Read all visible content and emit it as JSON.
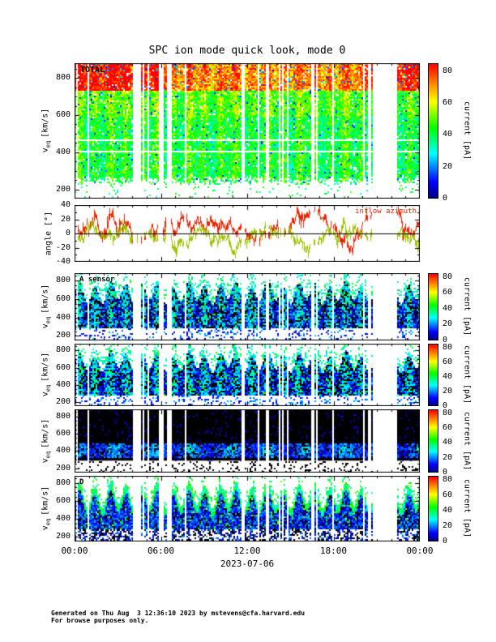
{
  "title": "SPC ion mode quick look, mode 0",
  "xaxis": {
    "ticks": [
      "00:00",
      "06:00",
      "12:00",
      "18:00",
      "00:00"
    ],
    "date_label": "2023-07-06"
  },
  "colorbar": {
    "label": "current [pA]",
    "ticks": [
      0,
      20,
      40,
      60,
      80
    ],
    "range": [
      0,
      80
    ],
    "colors": [
      "#000083",
      "#0000ff",
      "#00ffff",
      "#00ff00",
      "#ffff00",
      "#ff7f00",
      "#ff0000"
    ]
  },
  "angle_annotation": "inflow azimuth",
  "footer": {
    "line1": "Generated on Thu Aug  3 12:36:10 2023 by mstevens@cfa.harvard.edu",
    "line2": "For browse purposes only."
  },
  "chart_data": [
    {
      "type": "heatmap",
      "label": "TOTAL",
      "ylabel": {
        "prefix": "v",
        "sub": "eq",
        "units": "[km/s]"
      },
      "ylim": [
        150,
        880
      ],
      "yticks": [
        200,
        400,
        600,
        800
      ],
      "x_range": [
        "00:00",
        "24:00"
      ],
      "x_date": "2023-07-06",
      "colorbar": {
        "label": "current [pA]",
        "range": [
          0,
          80
        ],
        "ticks": [
          0,
          20,
          40,
          60,
          80
        ]
      },
      "description": "Total ion current spectrogram: broad green band from ~300 to ~850 km/s across the full day, yellow-orange-red enhancements near 800 km/s strongest at the start and end of day, periodic vertical striations, scattered white data-gap columns (cluster near 21:00-22:30), sparse green/blue speckle below 300 km/s, two thin horizontal white lines near 410 and 468 km/s."
    },
    {
      "type": "line",
      "label": "",
      "ylabel": "angle [°]",
      "ylim": [
        -40,
        40
      ],
      "yticks": [
        -40,
        -20,
        0,
        20,
        40
      ],
      "annotation": "inflow azimuth",
      "annotation_color": "#ee2200",
      "series": [
        {
          "name": "inflow azimuth",
          "color": "#ee2200",
          "typical_range": [
            -10,
            30
          ]
        },
        {
          "name": "",
          "color": "#9ec400",
          "typical_range": [
            -30,
            10
          ]
        }
      ],
      "description": "Spiky flow-angle traces about a black zero line: red inflow azimuth mostly between -10 and +30 degrees, yellow-green trace mostly between -30 and +10 degrees, same white data gaps as spectrograms."
    },
    {
      "type": "heatmap",
      "label": "A sensor",
      "ylabel": {
        "prefix": "v",
        "sub": "eq",
        "units": "[km/s]"
      },
      "ylim": [
        150,
        880
      ],
      "yticks": [
        200,
        400,
        600,
        800
      ],
      "colorbar": {
        "label": "current [pA]",
        "range": [
          0,
          80
        ],
        "ticks": [
          0,
          20,
          40,
          60,
          80
        ]
      },
      "description": "A-sensor current spectrogram: dark blue/black band 300-700 km/s with cyan-green flecks, scalloped arch pattern rising to ~800 km/s, white background below 300 km/s with speckle, shared white data-gap columns."
    },
    {
      "type": "heatmap",
      "label": "",
      "ylabel": {
        "prefix": "v",
        "sub": "eq",
        "units": "[km/s]"
      },
      "ylim": [
        150,
        880
      ],
      "yticks": [
        200,
        400,
        600,
        800
      ],
      "colorbar": {
        "label": "current [pA]",
        "range": [
          0,
          80
        ],
        "ticks": [
          0,
          20,
          40,
          60,
          80
        ]
      },
      "description": "Second sensor spectrogram, similar to A sensor: dark blue band with cyan speckle arches between ~300 and ~800 km/s, white gaps."
    },
    {
      "type": "heatmap",
      "label": "",
      "ylabel": {
        "prefix": "v",
        "sub": "eq",
        "units": "[km/s]"
      },
      "ylim": [
        150,
        880
      ],
      "yticks": [
        200,
        400,
        600,
        800
      ],
      "colorbar": {
        "label": "current [pA]",
        "range": [
          0,
          80
        ],
        "ticks": [
          0,
          20,
          40,
          60,
          80
        ]
      },
      "description": "Third sensor spectrogram: mostly black panel with faint dark-blue/purple band near 350-480 km/s, occasional cyan patches, white strip with dark speckle below ~290 km/s, white data-gap columns near end of day."
    },
    {
      "type": "heatmap",
      "label": "D",
      "ylabel": {
        "prefix": "v",
        "sub": "eq",
        "units": "[km/s]"
      },
      "ylim": [
        150,
        880
      ],
      "yticks": [
        200,
        400,
        600,
        800
      ],
      "colorbar": {
        "label": "current [pA]",
        "range": [
          0,
          80
        ],
        "ticks": [
          0,
          20,
          40,
          60,
          80
        ]
      },
      "description": "D-sensor spectrogram: blue/cyan scalloped arches from ~300 up to ~800 km/s with dark cores, dense dark speckle below 300 km/s, shared white data gaps."
    }
  ]
}
